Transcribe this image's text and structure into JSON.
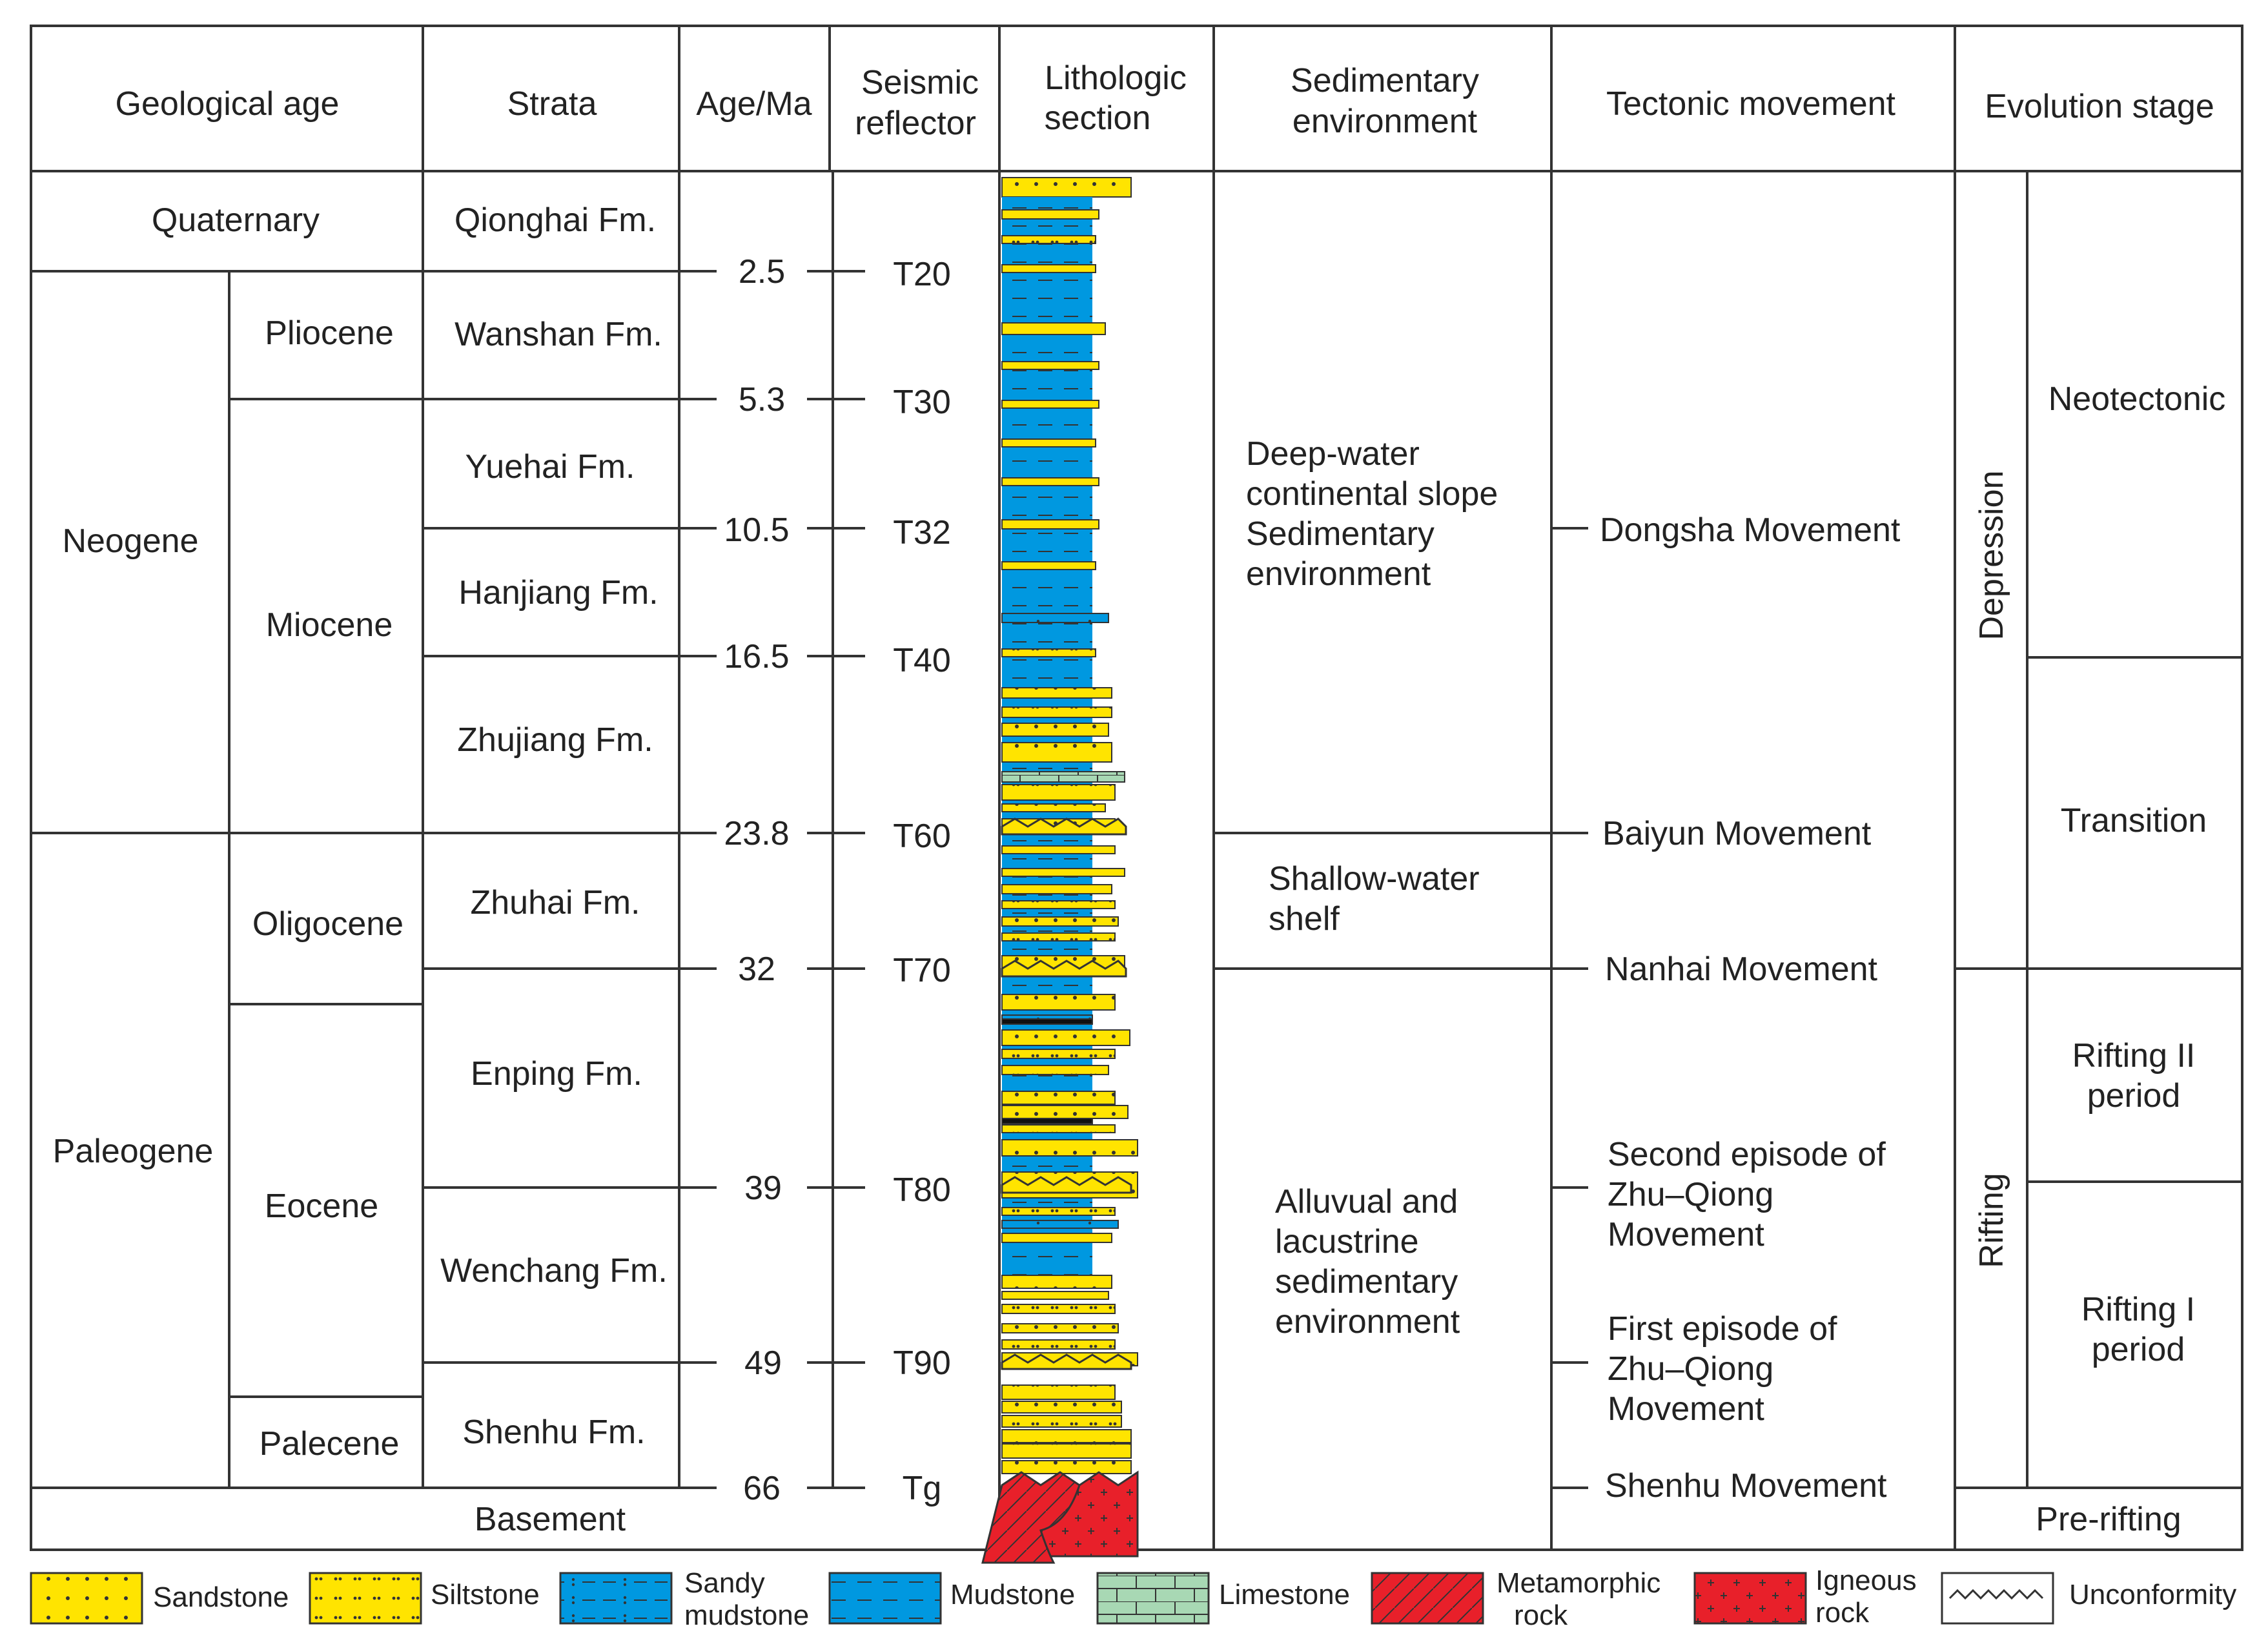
{
  "headers": {
    "geological_age": "Geological  age",
    "strata": "Strata",
    "age_ma": "Age/Ma",
    "seismic_1": "Seismic",
    "seismic_2": "reflector",
    "litho_1": "Lithologic",
    "litho_2": "section",
    "sed_1": "Sedimentary",
    "sed_2": "environment",
    "tectonic": "Tectonic movement",
    "evolution": "Evolution stage"
  },
  "periods": {
    "quaternary": "Quaternary",
    "neogene": "Neogene",
    "paleogene": "Paleogene"
  },
  "epochs": {
    "pliocene": "Pliocene",
    "miocene": "Miocene",
    "oligocene": "Oligocene",
    "eocene": "Eocene",
    "palecene": "Palecene"
  },
  "basement": "Basement",
  "formations": {
    "qionghai": "Qionghai Fm.",
    "wanshan": "Wanshan Fm.",
    "yuehai": "Yuehai Fm.",
    "hanjiang": "Hanjiang Fm.",
    "zhujiang": "Zhujiang Fm.",
    "zhuhai": "Zhuhai Fm.",
    "enping": "Enping Fm.",
    "wenchang": "Wenchang Fm.",
    "shenhu": "Shenhu Fm."
  },
  "ages": {
    "a1": "2.5",
    "a2": "5.3",
    "a3": "10.5",
    "a4": "16.5",
    "a5": "23.8",
    "a6": "32",
    "a7": "39",
    "a8": "49",
    "a9": "66"
  },
  "reflectors": {
    "r1": "T20",
    "r2": "T30",
    "r3": "T32",
    "r4": "T40",
    "r5": "T60",
    "r6": "T70",
    "r7": "T80",
    "r8": "T90",
    "r9": "Tg"
  },
  "environments": {
    "deep_1": "Deep-water",
    "deep_2": "continental slope",
    "deep_3": "Sedimentary",
    "deep_4": "environment",
    "shelf_1": "Shallow-water",
    "shelf_2": "shelf",
    "alluvial_1": "Alluvual and",
    "alluvial_2": "lacustrine",
    "alluvial_3": "sedimentary",
    "alluvial_4": "environment"
  },
  "movements": {
    "dongsha": "Dongsha Movement",
    "baiyun": "Baiyun Movement",
    "nanhai": "Nanhai Movement",
    "second_1": "Second episode of",
    "second_2": "Zhu–Qiong",
    "second_3": "Movement",
    "first_1": "First episode of",
    "first_2": "Zhu–Qiong",
    "first_3": "Movement",
    "shenhu": "Shenhu Movement"
  },
  "stages": {
    "depression": "Depression",
    "rifting": "Rifting",
    "neotectonic": "Neotectonic",
    "transition": "Transition",
    "rift2_1": "Rifting II",
    "rift2_2": "period",
    "rift1_1": "Rifting I",
    "rift1_2": "period",
    "prerifting": "Pre-rifting"
  },
  "legend": {
    "sandstone": "Sandstone",
    "siltstone": "Siltstone",
    "sandy_1": "Sandy",
    "sandy_2": "mudstone",
    "mudstone": "Mudstone",
    "limestone": "Limestone",
    "meta_1": "Metamorphic",
    "meta_2": "rock",
    "igneous_1": "Igneous",
    "igneous_2": "rock",
    "unconformity": "Unconformity"
  },
  "colors": {
    "sandstone": "#ffe400",
    "mudstone": "#0098e0",
    "limestone": "#a8d8b4",
    "igneous": "#e8202a",
    "metamorphic": "#e8202a",
    "line": "#333333"
  }
}
